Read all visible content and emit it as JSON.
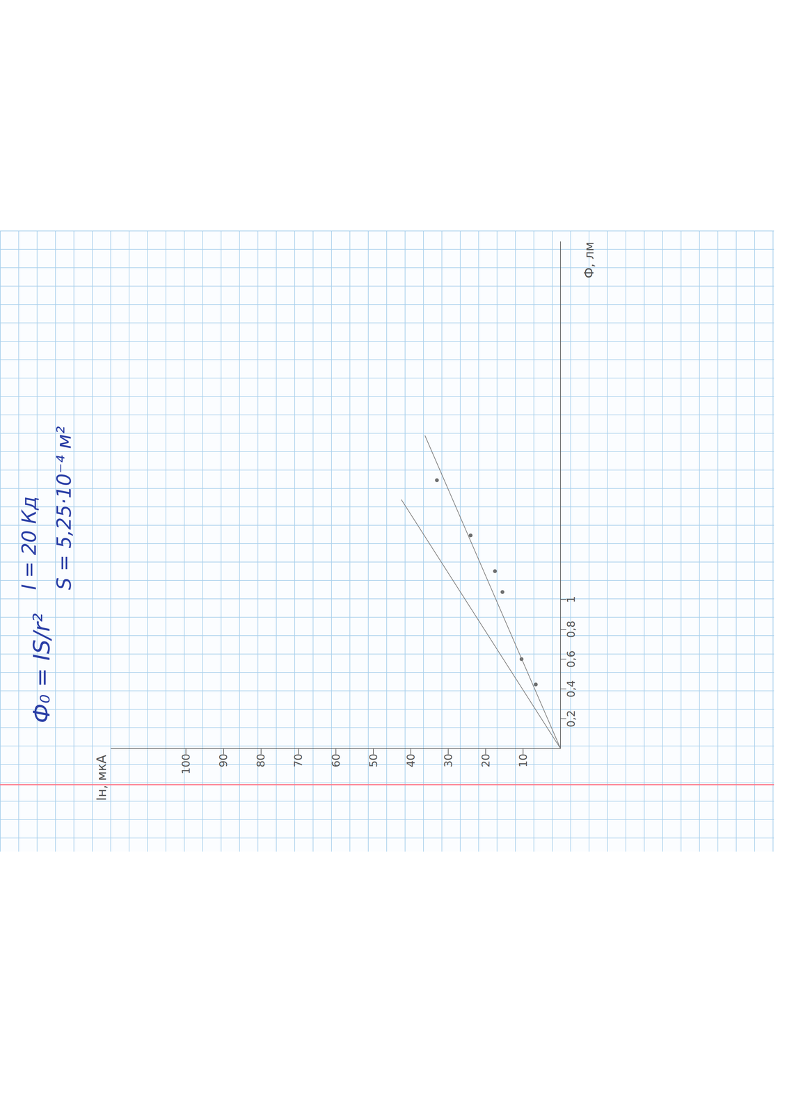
{
  "chart_data": {
    "type": "line",
    "annotations": [
      "Ф₀ = IS/r²",
      "I = 20 Кд",
      "S = 5,25·10⁻⁴ м²"
    ],
    "x_label": "Ф, лм",
    "y_label": "Iн, мкА",
    "xlim": [
      0,
      3.4
    ],
    "ylim": [
      0,
      120
    ],
    "xticks": [
      {
        "value": 0.2,
        "label": "0,2"
      },
      {
        "value": 0.4,
        "label": "0,4"
      },
      {
        "value": 0.6,
        "label": "0,6"
      },
      {
        "value": 0.8,
        "label": "0,8"
      },
      1
    ],
    "yticks": [
      10,
      20,
      30,
      40,
      50,
      60,
      70,
      80,
      90,
      100
    ],
    "grid": false,
    "series": [
      {
        "type": "scatter",
        "marker": "circle",
        "color": "#4a4a4a",
        "x": [
          0.43,
          0.6,
          1.05,
          1.19,
          1.43,
          1.8
        ],
        "values": [
          6.6,
          10.4,
          15.5,
          17.5,
          24.0,
          33.0
        ]
      },
      {
        "type": "line",
        "marker": "none",
        "line_style": "solid",
        "color": "#7a7a7a",
        "x": [
          0,
          2.1
        ],
        "values": [
          0,
          36.2
        ]
      },
      {
        "type": "line",
        "marker": "none",
        "line_style": "solid",
        "color": "#7a7a7a",
        "x": [
          0,
          1.67
        ],
        "values": [
          0,
          42.5
        ]
      }
    ]
  }
}
